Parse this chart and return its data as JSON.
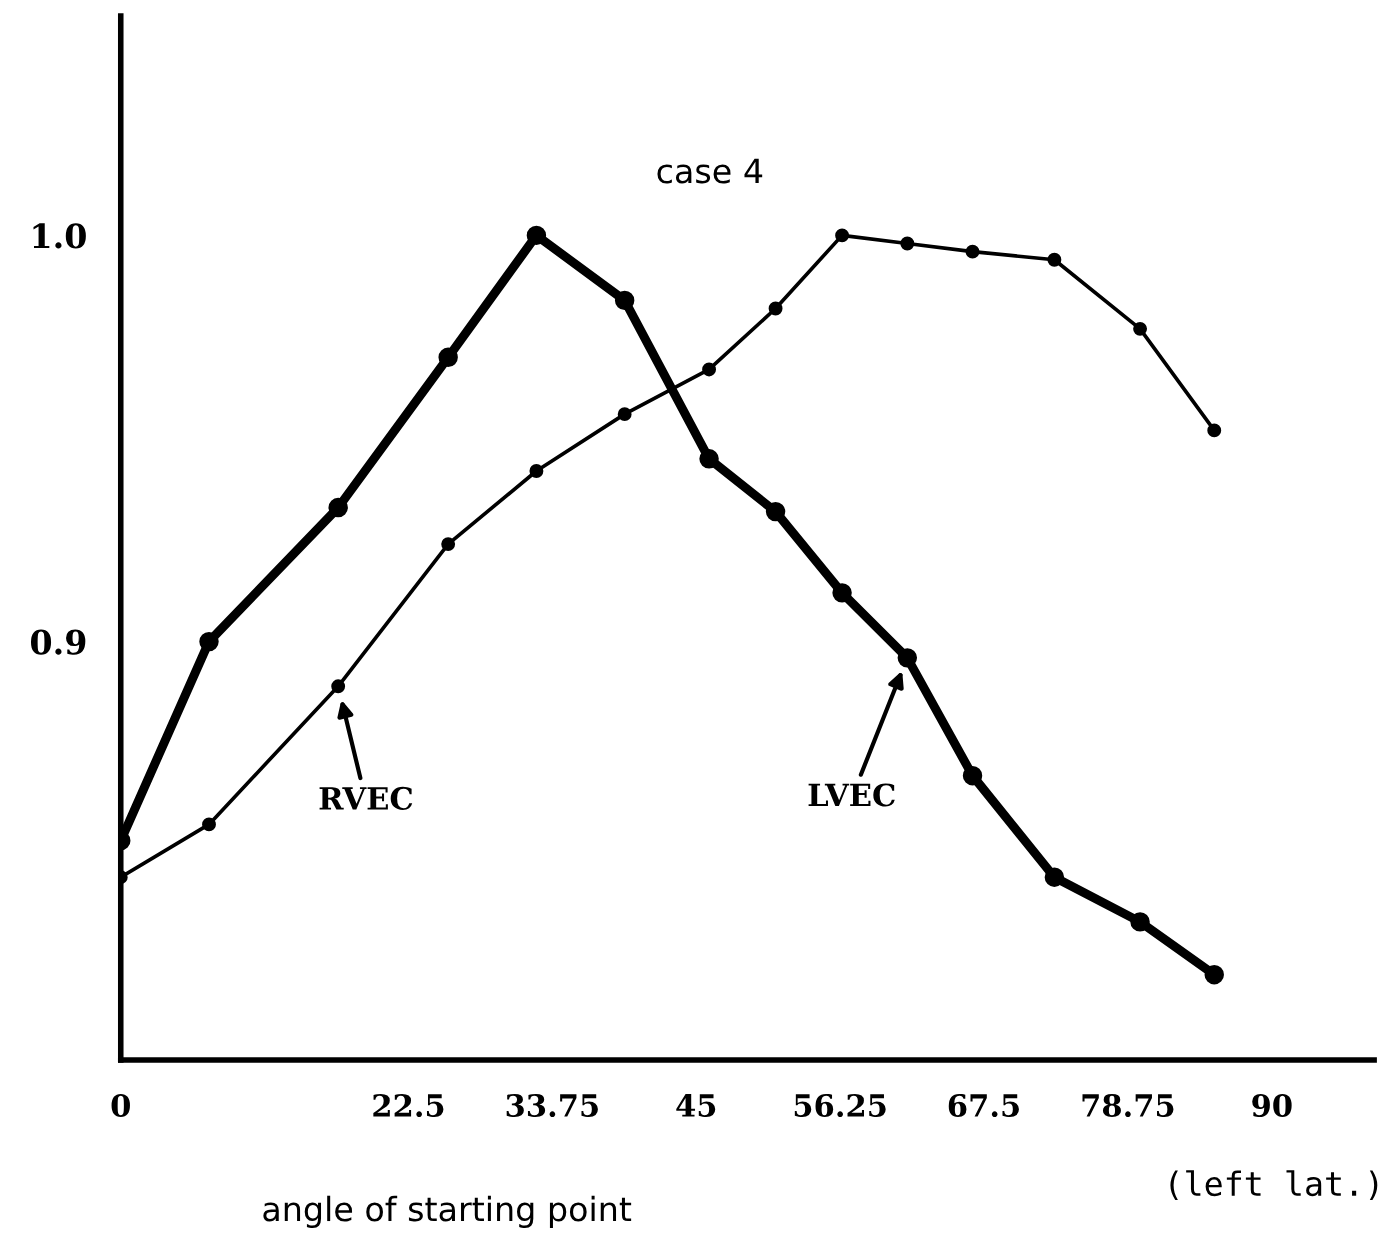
{
  "chart_data": {
    "type": "line",
    "title": "case 4",
    "xlabel": "angle of starting point",
    "x": [
      0,
      6.9,
      17.0,
      25.6,
      32.5,
      39.4,
      46.0,
      51.2,
      56.4,
      61.5,
      66.6,
      73.0,
      79.7,
      85.5
    ],
    "series": [
      {
        "name": "LVEC",
        "color": "#000000",
        "values": [
          0.851,
          0.9,
          0.933,
          0.97,
          1.0,
          0.984,
          0.945,
          0.932,
          0.912,
          0.896,
          0.867,
          0.842,
          0.831,
          0.818
        ]
      },
      {
        "name": "RVEC",
        "color": "#000000",
        "values": [
          0.842,
          0.855,
          0.889,
          0.924,
          0.942,
          0.956,
          0.967,
          0.982,
          1.0,
          0.998,
          0.996,
          0.994,
          0.977,
          0.952
        ]
      }
    ],
    "xlim": [
      0,
      98
    ],
    "xticks": [
      0,
      22.5,
      33.75,
      45,
      56.25,
      67.5,
      78.75,
      90
    ],
    "ylim": [
      0.797,
      1.054
    ],
    "yticks": [
      0.9,
      {
        "value": 1,
        "label": "1.0"
      }
    ],
    "annotations": [
      "(left lat.)"
    ],
    "marker": "circle",
    "line_style": "solid",
    "grid": false,
    "legend": false
  }
}
